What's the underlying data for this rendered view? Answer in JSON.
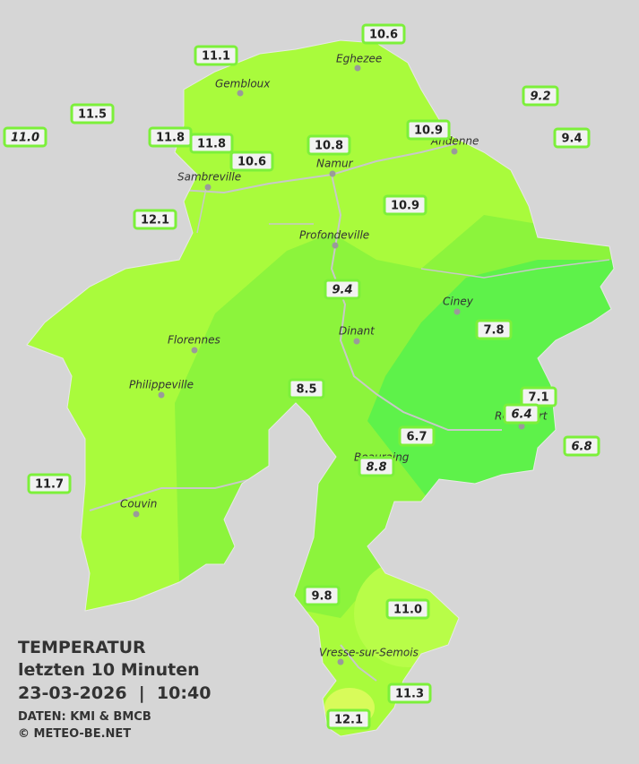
{
  "title": {
    "line1": "TEMPERATUR",
    "line2": "letzten 10 Minuten",
    "line3": "23-03-2026  |  10:40",
    "source": "DATEN: KMI & BMCB",
    "copyright": "© METEO-BE.NET"
  },
  "towns": [
    {
      "label": "Eghezee"
    },
    {
      "label": "Gembloux"
    },
    {
      "label": "Andenne"
    },
    {
      "label": "Namur"
    },
    {
      "label": "Sambreville"
    },
    {
      "label": "Profondeville"
    },
    {
      "label": "Ciney"
    },
    {
      "label": "Dinant"
    },
    {
      "label": "Florennes"
    },
    {
      "label": "Philippeville"
    },
    {
      "label": "Rochefort"
    },
    {
      "label": "Beauraing"
    },
    {
      "label": "Couvin"
    },
    {
      "label": "Vresse-sur-Semois"
    }
  ],
  "stations": [
    {
      "label": "10.6"
    },
    {
      "label": "11.1"
    },
    {
      "label": "9.2",
      "italic": true
    },
    {
      "label": "11.5"
    },
    {
      "label": "11.0",
      "italic": true
    },
    {
      "label": "9.4"
    },
    {
      "label": "11.8"
    },
    {
      "label": "11.8"
    },
    {
      "label": "10.9"
    },
    {
      "label": "10.8"
    },
    {
      "label": "10.6"
    },
    {
      "label": "12.1"
    },
    {
      "label": "10.9"
    },
    {
      "label": "9.4",
      "italic": true
    },
    {
      "label": "7.8"
    },
    {
      "label": "8.5"
    },
    {
      "label": "7.1"
    },
    {
      "label": "6.4",
      "italic": true
    },
    {
      "label": "6.7"
    },
    {
      "label": "6.8",
      "italic": true
    },
    {
      "label": "8.8",
      "italic": true
    },
    {
      "label": "11.7"
    },
    {
      "label": "9.8"
    },
    {
      "label": "11.0"
    },
    {
      "label": "11.3"
    },
    {
      "label": "12.1"
    }
  ]
}
